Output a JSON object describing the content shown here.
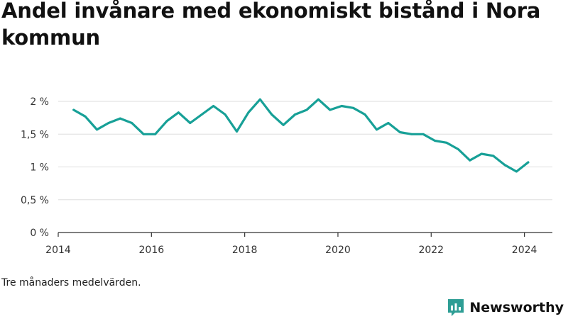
{
  "title": "Andel invånare med ekonomiskt bistånd i Nora kommun",
  "note": "Tre månaders medelvärden.",
  "brand": {
    "name": "Newsworthy",
    "icon": "newsworthy-logo-icon"
  },
  "colors": {
    "line": "#17a097",
    "brand": "#2e9e95",
    "grid": "#dddddd",
    "axis": "#333333"
  },
  "chart_data": {
    "type": "line",
    "title": "Andel invånare med ekonomiskt bistånd i Nora kommun",
    "xlabel": "",
    "ylabel": "",
    "xlim": [
      2014,
      2024.6
    ],
    "ylim": [
      0,
      2.0
    ],
    "grid": "horizontal",
    "legend": "none",
    "x_ticks": [
      2014,
      2016,
      2018,
      2020,
      2022,
      2024
    ],
    "x_tick_labels": [
      "2014",
      "2016",
      "2018",
      "2020",
      "2022",
      "2024"
    ],
    "y_ticks": [
      0,
      0.5,
      1,
      1.5,
      2
    ],
    "y_tick_labels": [
      "0 %",
      "0,5 %",
      "1 %",
      "1,5 %",
      "2 %"
    ],
    "series": [
      {
        "name": "",
        "x": [
          2014.33,
          2014.58,
          2014.83,
          2015.08,
          2015.33,
          2015.58,
          2015.83,
          2016.08,
          2016.33,
          2016.58,
          2016.83,
          2017.08,
          2017.33,
          2017.58,
          2017.83,
          2018.08,
          2018.33,
          2018.58,
          2018.83,
          2019.08,
          2019.33,
          2019.58,
          2019.83,
          2020.08,
          2020.33,
          2020.58,
          2020.83,
          2021.08,
          2021.33,
          2021.58,
          2021.83,
          2022.08,
          2022.33,
          2022.58,
          2022.83,
          2023.08,
          2023.33,
          2023.58,
          2023.83,
          2024.08
        ],
        "values": [
          1.87,
          1.77,
          1.57,
          1.67,
          1.74,
          1.67,
          1.5,
          1.5,
          1.7,
          1.83,
          1.67,
          1.8,
          1.93,
          1.8,
          1.54,
          1.83,
          2.03,
          1.8,
          1.64,
          1.8,
          1.87,
          2.03,
          1.87,
          1.93,
          1.9,
          1.8,
          1.57,
          1.67,
          1.53,
          1.5,
          1.5,
          1.4,
          1.37,
          1.27,
          1.1,
          1.2,
          1.17,
          1.03,
          0.93,
          1.07
        ]
      }
    ]
  }
}
